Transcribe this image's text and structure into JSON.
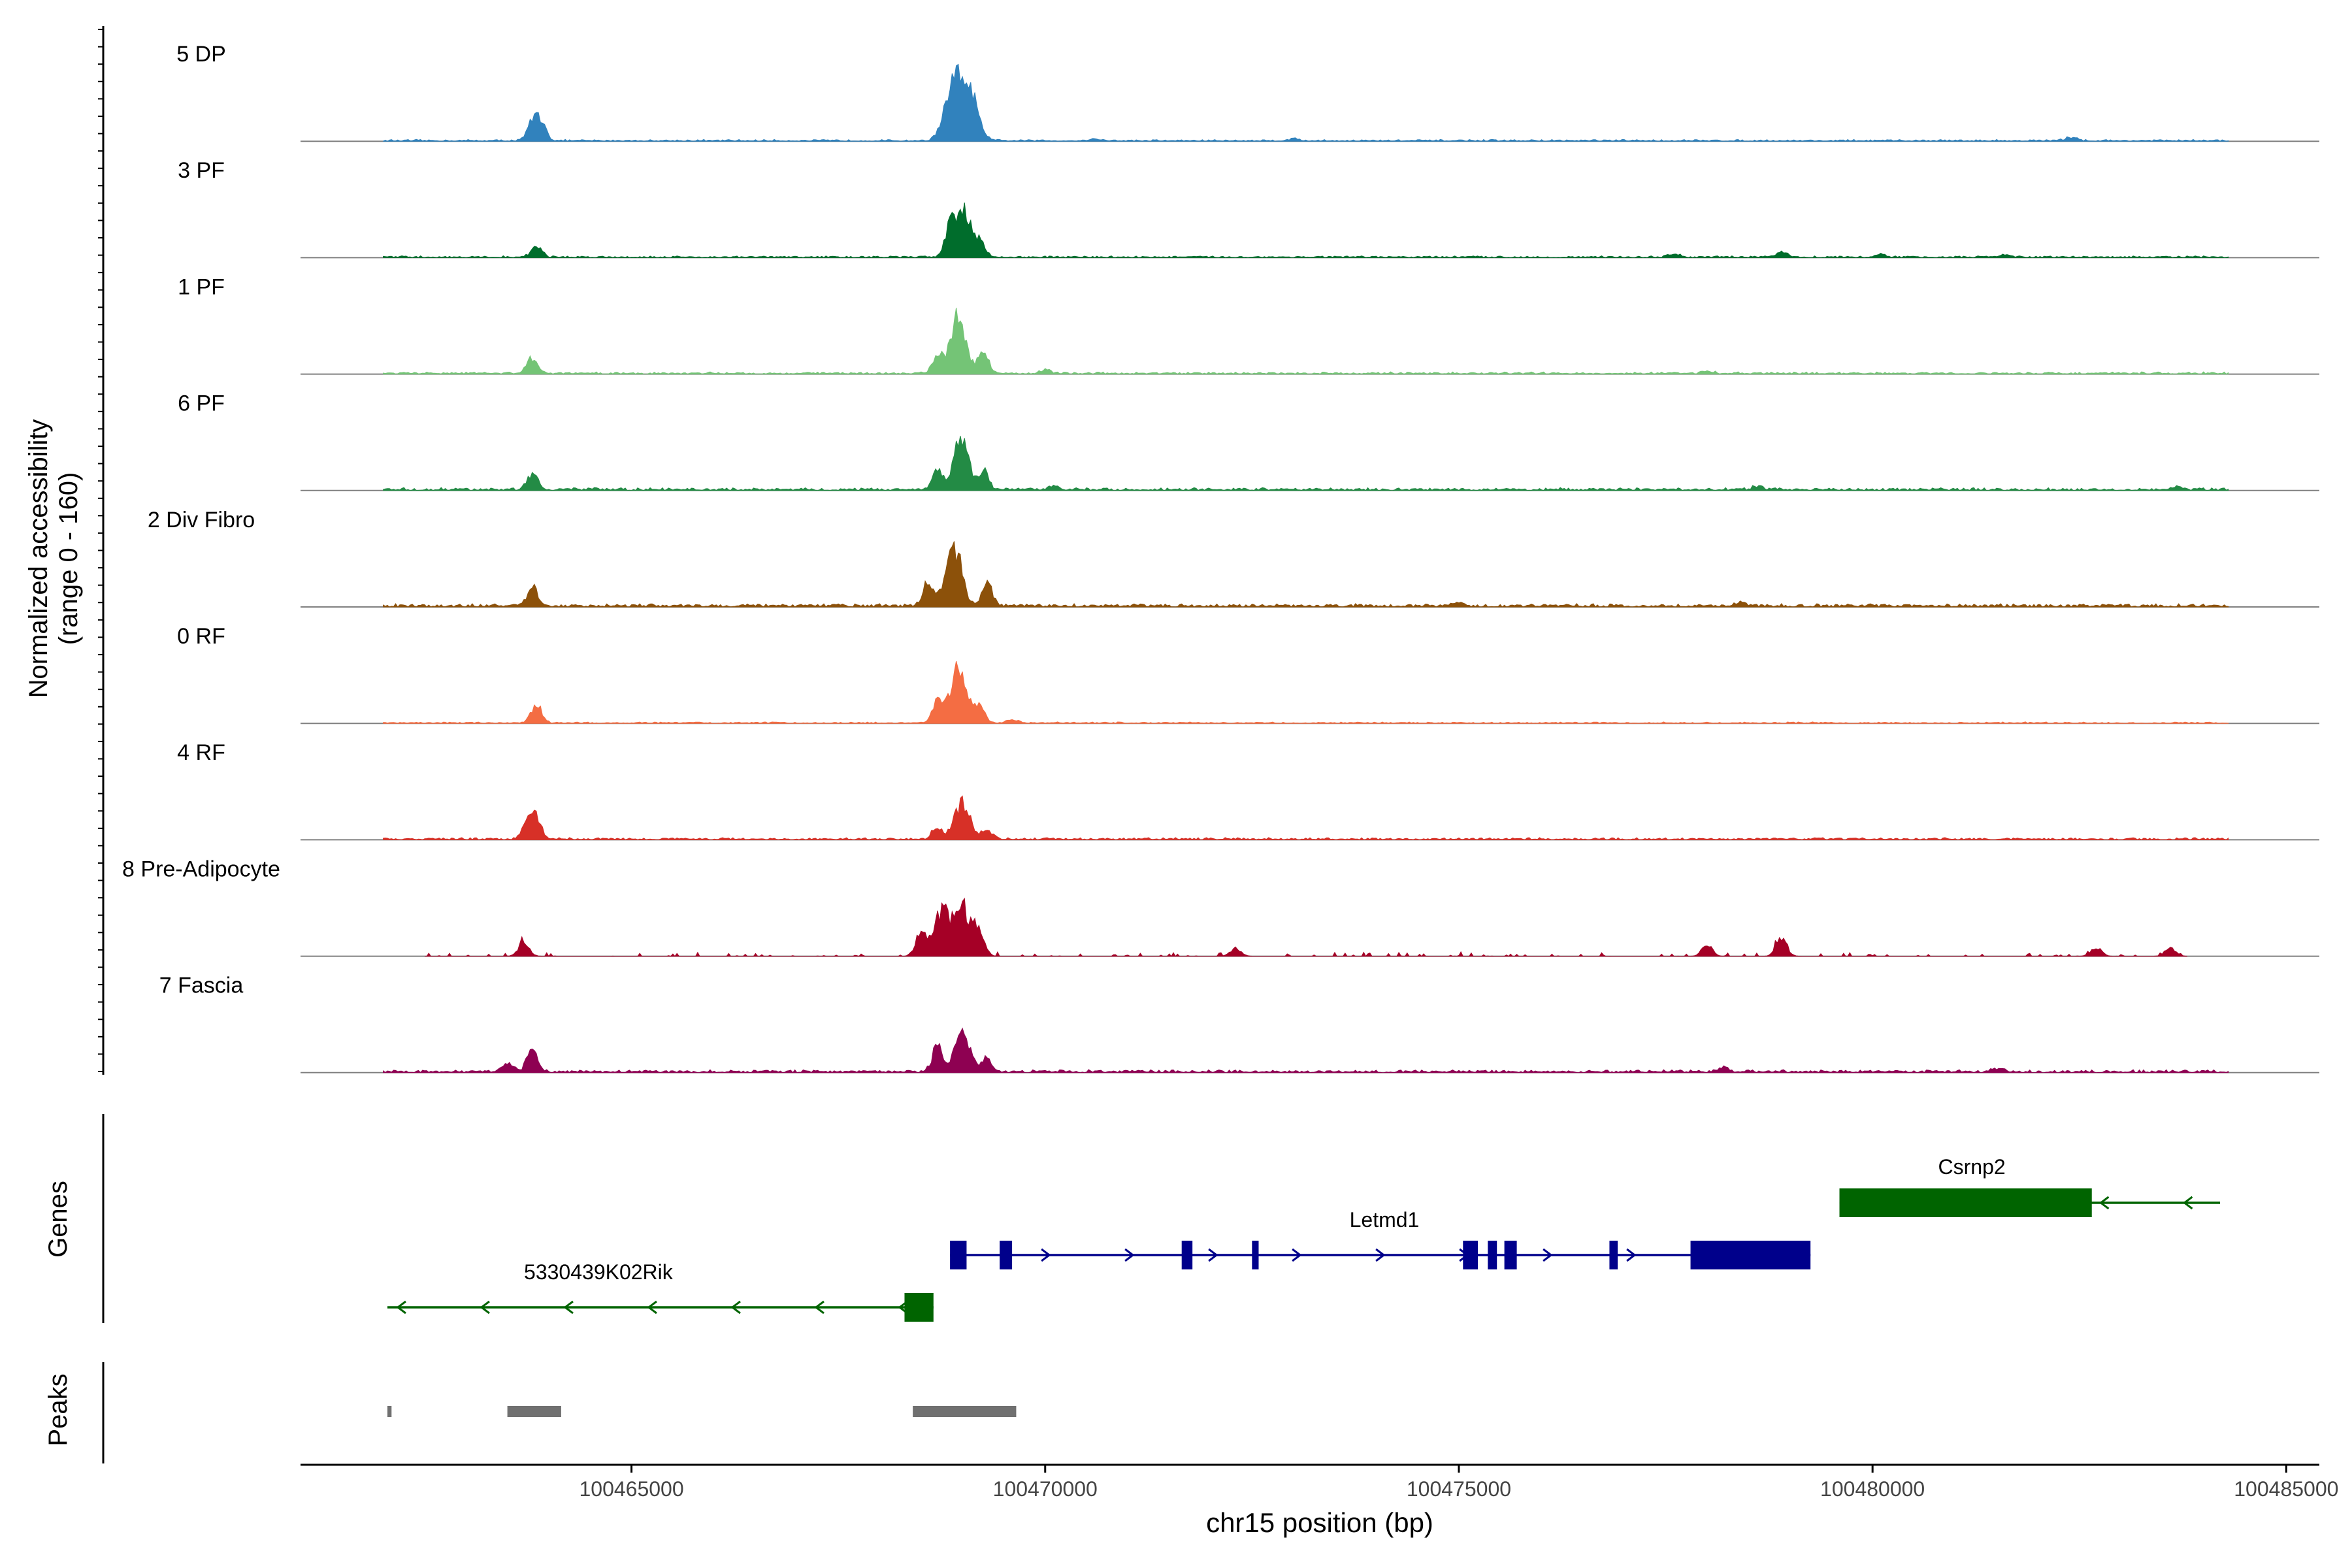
{
  "chart_data": {
    "type": "area",
    "title": "",
    "xlabel": "chr15 position (bp)",
    "ylabel": [
      "Normalized accessibility",
      "(range 0 - 160)"
    ],
    "region": "chr15",
    "xlim": [
      100461000,
      100485400
    ],
    "ylim": [
      0,
      160
    ],
    "x_ticks": [
      {
        "value": 100465000,
        "label": "100465000"
      },
      {
        "value": 100470000,
        "label": "100470000"
      },
      {
        "value": 100475000,
        "label": "100475000"
      },
      {
        "value": 100480000,
        "label": "100480000"
      },
      {
        "value": 100485000,
        "label": "100485000"
      }
    ],
    "track_labels": {
      "genes": "Genes",
      "peaks": "Peaks"
    },
    "series": [
      {
        "name": "5 DP",
        "color": "#3182BD",
        "peaks": [
          [
            100463800,
            25
          ],
          [
            100463900,
            30
          ],
          [
            100468850,
            60
          ],
          [
            100469000,
            72
          ],
          [
            100469120,
            45
          ],
          [
            100482400,
            6
          ],
          [
            100470600,
            3
          ],
          [
            100473000,
            3
          ]
        ],
        "baseline": [
          100462000,
          100484300
        ],
        "noise": 2.5
      },
      {
        "name": "3 PF",
        "color": "#006D2C",
        "peaks": [
          [
            100463850,
            18
          ],
          [
            100468850,
            40
          ],
          [
            100469000,
            74
          ],
          [
            100469200,
            25
          ],
          [
            100478900,
            8
          ],
          [
            100477600,
            5
          ],
          [
            100480100,
            4
          ],
          [
            100481600,
            4
          ]
        ],
        "baseline": [
          100462000,
          100484300
        ],
        "noise": 2.5
      },
      {
        "name": "1 PF",
        "color": "#74C476",
        "peaks": [
          [
            100463800,
            25
          ],
          [
            100468700,
            30
          ],
          [
            100468950,
            86
          ],
          [
            100469250,
            32
          ],
          [
            100470000,
            5
          ],
          [
            100478000,
            4
          ]
        ],
        "baseline": [
          100462000,
          100484300
        ],
        "noise": 3.0
      },
      {
        "name": "6 PF",
        "color": "#238B45",
        "peaks": [
          [
            100463800,
            25
          ],
          [
            100468700,
            30
          ],
          [
            100468980,
            76
          ],
          [
            100469250,
            30
          ],
          [
            100470100,
            6
          ],
          [
            100478600,
            5
          ],
          [
            100483700,
            4
          ]
        ],
        "baseline": [
          100462000,
          100484300
        ],
        "noise": 4.0
      },
      {
        "name": "2 Div Fibro",
        "color": "#8C510A",
        "peaks": [
          [
            100463800,
            30
          ],
          [
            100468600,
            40
          ],
          [
            100468900,
            90
          ],
          [
            100469300,
            35
          ],
          [
            100478400,
            6
          ],
          [
            100475000,
            5
          ]
        ],
        "baseline": [
          100462000,
          100484300
        ],
        "noise": 4.5
      },
      {
        "name": "0 RF",
        "color": "#F46D43",
        "peaks": [
          [
            100463850,
            30
          ],
          [
            100468700,
            35
          ],
          [
            100468950,
            85
          ],
          [
            100469200,
            30
          ],
          [
            100469600,
            6
          ]
        ],
        "baseline": [
          100462000,
          100484300
        ],
        "noise": 2.0
      },
      {
        "name": "4 RF",
        "color": "#D73027",
        "peaks": [
          [
            100463750,
            28
          ],
          [
            100463850,
            30
          ],
          [
            100468700,
            20
          ],
          [
            100469000,
            58
          ],
          [
            100469300,
            15
          ]
        ],
        "baseline": [
          100462000,
          100484300
        ],
        "noise": 3.0
      },
      {
        "name": "8 Pre-Adipocyte",
        "color": "#A50026",
        "peaks": [
          [
            100463700,
            22
          ],
          [
            100468500,
            40
          ],
          [
            100468750,
            70
          ],
          [
            100469000,
            80
          ],
          [
            100469200,
            40
          ],
          [
            100478900,
            30
          ],
          [
            100478000,
            18
          ],
          [
            100472300,
            12
          ],
          [
            100482700,
            14
          ],
          [
            100483600,
            14
          ]
        ],
        "baseline": [
          100462500,
          100483800
        ],
        "noise": 6.0,
        "sparse": true
      },
      {
        "name": "7 Fascia",
        "color": "#8E0152",
        "peaks": [
          [
            100463500,
            15
          ],
          [
            100463800,
            38
          ],
          [
            100468700,
            40
          ],
          [
            100469000,
            60
          ],
          [
            100469300,
            20
          ],
          [
            100478200,
            6
          ],
          [
            100481500,
            6
          ]
        ],
        "baseline": [
          100462000,
          100484300
        ],
        "noise": 4.0
      }
    ],
    "genes": [
      {
        "name": "Letmd1",
        "strand": "+",
        "color": "#00008B",
        "start": 100468850,
        "end": 100479250,
        "exons": [
          [
            100468850,
            100469050
          ],
          [
            100469450,
            100469600
          ],
          [
            100471650,
            100471780
          ],
          [
            100472500,
            100472580
          ],
          [
            100475050,
            100475230
          ],
          [
            100475350,
            100475460
          ],
          [
            100475550,
            100475700
          ],
          [
            100476820,
            100476920
          ],
          [
            100477800,
            100479250
          ]
        ]
      },
      {
        "name": "5330439K02Rik",
        "strand": "-",
        "color": "#006400",
        "start": 100462050,
        "end": 100468650,
        "exons": [
          [
            100468300,
            100468650
          ]
        ]
      },
      {
        "name": "Csrnp2",
        "strand": "-",
        "color": "#006400",
        "start": 100479600,
        "end": 100484200,
        "exons": [
          [
            100479600,
            100482650
          ]
        ]
      }
    ],
    "peaks": [
      {
        "start": 100462050,
        "end": 100462100
      },
      {
        "start": 100463500,
        "end": 100464150
      },
      {
        "start": 100468400,
        "end": 100469650
      }
    ]
  }
}
